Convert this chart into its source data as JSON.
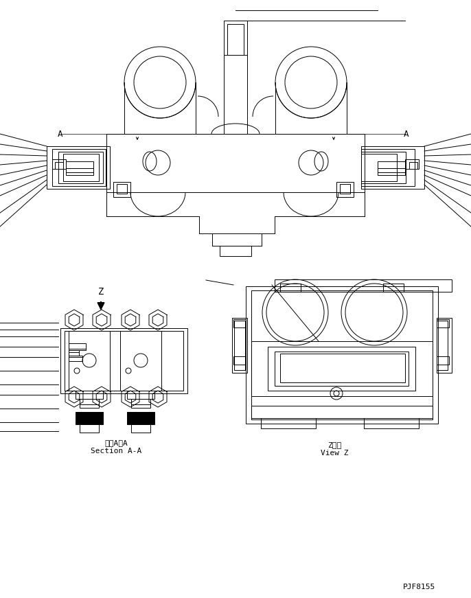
{
  "bg_color": "#ffffff",
  "line_color": "#000000",
  "fig_width": 6.86,
  "fig_height": 8.71,
  "dpi": 100,
  "label_section_aa_jp": "断面A－A",
  "label_section_aa_en": "Section A-A",
  "label_view_z_jp": "Z　視",
  "label_view_z_en": "View Z",
  "label_z": "Z",
  "part_number": "PJF8155"
}
